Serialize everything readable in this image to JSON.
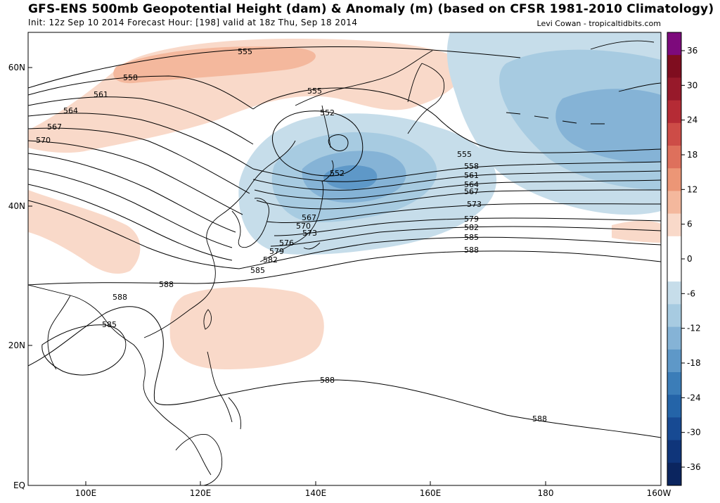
{
  "header": {
    "title": "GFS-ENS 500mb Geopotential Height (dam) & Anomaly (m) (based on CFSR 1981-2010 Climatology)",
    "init_line": "Init: 12z Sep 10 2014 Forecast Hour: [198] valid at 18z Thu, Sep 18 2014",
    "credit": "Levi Cowan - tropicaltidbits.com"
  },
  "map": {
    "lon_labels": [
      "100E",
      "120E",
      "140E",
      "160E",
      "180",
      "160W"
    ],
    "lat_labels": [
      "60N",
      "40N",
      "20N",
      "EQ"
    ],
    "contour_labels": [
      "555",
      "558",
      "561",
      "564",
      "567",
      "570",
      "555",
      "552",
      "552",
      "555",
      "558",
      "561",
      "564",
      "567",
      "573",
      "579",
      "582",
      "585",
      "588",
      "567",
      "570",
      "573",
      "576",
      "579",
      "582",
      "585",
      "588",
      "588",
      "585",
      "588",
      "588"
    ]
  },
  "colorbar": {
    "tick_labels": [
      "36",
      "30",
      "24",
      "18",
      "12",
      "6",
      "0",
      "-6",
      "-12",
      "-18",
      "-24",
      "-30",
      "-36"
    ],
    "positive_colors": [
      "#ffffff",
      "#f9d9c9",
      "#f4b89d",
      "#ec9676",
      "#de705c",
      "#cd4c47",
      "#b52b35",
      "#97192a",
      "#7f0d1f",
      "#7d0a7c"
    ],
    "negative_colors": [
      "#ffffff",
      "#c6ddea",
      "#a7cbe1",
      "#85b3d6",
      "#5e98c8",
      "#3b7db8",
      "#2464a8",
      "#174a93",
      "#0f357a",
      "#0b255f"
    ]
  }
}
